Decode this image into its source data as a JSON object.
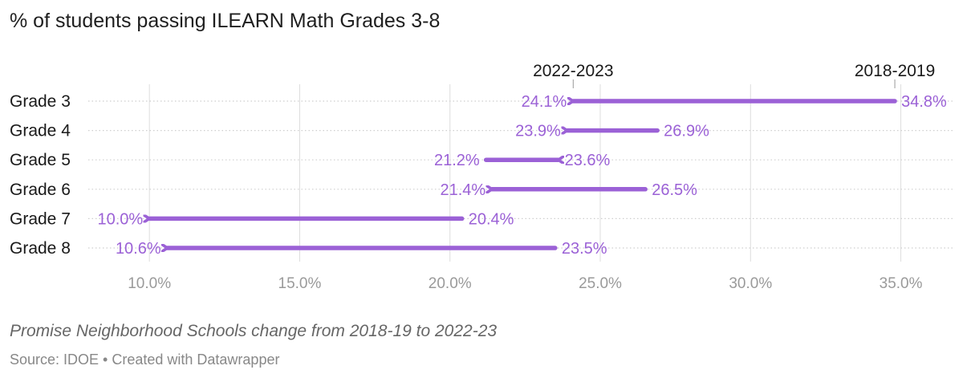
{
  "colors": {
    "accent": "#9b61d6",
    "grid": "#dddddd",
    "row_dots": "#cfcfcf",
    "tick_text": "#9a9a9a",
    "text": "#1a1a1a"
  },
  "header": {
    "title": "% of students passing ILEARN Math Grades 3-8"
  },
  "footer": {
    "subtitle": "Promise Neighborhood Schools change from 2018-19 to 2022-23",
    "source": "Source: IDOE",
    "separator": " • ",
    "credit": "Created with Datawrapper"
  },
  "chart_data": {
    "type": "arrow",
    "title": "% of students passing ILEARN Math Grades 3-8",
    "categories": [
      "Grade 3",
      "Grade 4",
      "Grade 5",
      "Grade 6",
      "Grade 7",
      "Grade 8"
    ],
    "series": [
      {
        "name": "2018-2019",
        "values": [
          34.8,
          26.9,
          21.2,
          26.5,
          20.4,
          23.5
        ],
        "labels": [
          "34.8%",
          "26.9%",
          "21.2%",
          "26.5%",
          "20.4%",
          "23.5%"
        ]
      },
      {
        "name": "2022-2023",
        "values": [
          24.1,
          23.9,
          23.6,
          21.4,
          10.0,
          10.6
        ],
        "labels": [
          "24.1%",
          "23.9%",
          "23.6%",
          "21.4%",
          "10.0%",
          "10.6%"
        ]
      }
    ],
    "xlim": [
      8.5,
      36.8
    ],
    "xticks": [
      10,
      15,
      20,
      25,
      30,
      35
    ],
    "xtick_labels": [
      "10.0%",
      "15.0%",
      "20.0%",
      "25.0%",
      "30.0%",
      "35.0%"
    ],
    "legend": [
      {
        "label": "2022-2023",
        "at_value": 24.1
      },
      {
        "label": "2018-2019",
        "at_value": 34.8
      }
    ]
  }
}
